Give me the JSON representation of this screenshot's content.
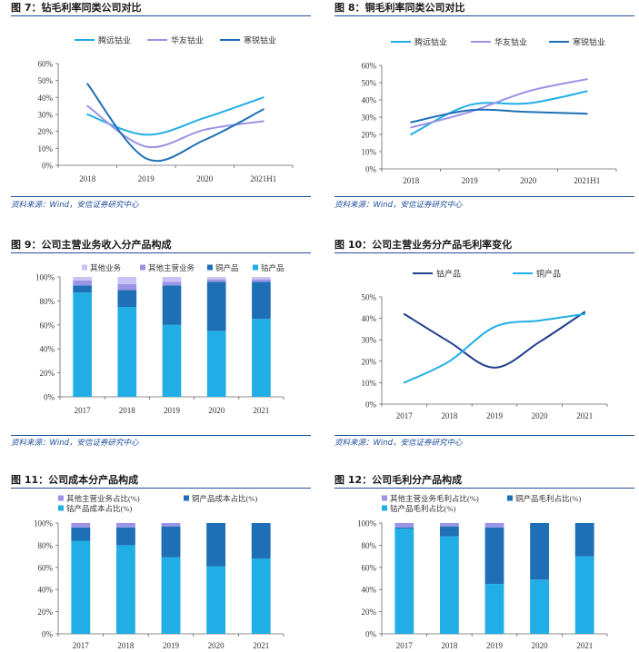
{
  "colors": {
    "navy": "#1F3F8C",
    "blue": "#1E6FB6",
    "cyan": "#21AEE6",
    "lavender": "#9B93E6",
    "lightlav": "#C8C3F2",
    "rule": "#1F4E9A"
  },
  "panels": [
    {
      "id": "fig7",
      "title": "图 7：钻毛利率同类公司对比",
      "source": "资料来源：Wind，安信证券研究中心",
      "chart_data": {
        "type": "line",
        "categories": [
          "2018",
          "2019",
          "2020",
          "2021H1"
        ],
        "ylim": [
          0,
          0.6
        ],
        "yticks": [
          "0%",
          "10%",
          "20%",
          "30%",
          "40%",
          "50%",
          "60%"
        ],
        "legend_position": "top",
        "series": [
          {
            "name": "腾远钴业",
            "color": "#21AEE6",
            "values": [
              0.3,
              0.18,
              0.28,
              0.4
            ]
          },
          {
            "name": "华友钴业",
            "color": "#9B93E6",
            "values": [
              0.35,
              0.11,
              0.21,
              0.26
            ]
          },
          {
            "name": "寒锐钴业",
            "color": "#1E6FB6",
            "values": [
              0.48,
              0.04,
              0.15,
              0.33
            ]
          }
        ]
      }
    },
    {
      "id": "fig8",
      "title": "图 8：铜毛利率同类公司对比",
      "source": "资料来源：Wind，安信证券研究中心",
      "chart_data": {
        "type": "line",
        "categories": [
          "2018",
          "2019",
          "2020",
          "2021H1"
        ],
        "ylim": [
          0,
          0.6
        ],
        "yticks": [
          "0%",
          "10%",
          "20%",
          "30%",
          "40%",
          "50%",
          "60%"
        ],
        "legend_position": "top",
        "series": [
          {
            "name": "腾远钴业",
            "color": "#21AEE6",
            "values": [
              0.2,
              0.37,
              0.38,
              0.45
            ]
          },
          {
            "name": "华友钴业",
            "color": "#9B93E6",
            "values": [
              0.24,
              0.33,
              0.45,
              0.52
            ]
          },
          {
            "name": "寒锐钴业",
            "color": "#1E6FB6",
            "values": [
              0.27,
              0.34,
              0.33,
              0.32
            ]
          }
        ]
      }
    },
    {
      "id": "fig9",
      "title": "图 9：公司主营业务收入分产品构成",
      "source": "资料来源：Wind，安信证券研究中心",
      "chart_data": {
        "type": "bar",
        "stacked": true,
        "categories": [
          "2017",
          "2018",
          "2019",
          "2020",
          "2021"
        ],
        "ylim": [
          0,
          1
        ],
        "yticks": [
          "0%",
          "20%",
          "40%",
          "60%",
          "80%",
          "100%"
        ],
        "legend_position": "top",
        "legend_order": [
          3,
          2,
          1,
          0
        ],
        "series": [
          {
            "name": "钴产品",
            "color": "#21AEE6",
            "values": [
              0.87,
              0.75,
              0.6,
              0.55,
              0.65
            ]
          },
          {
            "name": "铜产品",
            "color": "#1E6FB6",
            "values": [
              0.06,
              0.14,
              0.33,
              0.41,
              0.31
            ]
          },
          {
            "name": "其他主营业务",
            "color": "#9B93E6",
            "values": [
              0.04,
              0.05,
              0.03,
              0.02,
              0.02
            ]
          },
          {
            "name": "其他业务",
            "color": "#C8C3F2",
            "values": [
              0.03,
              0.06,
              0.04,
              0.02,
              0.02
            ]
          }
        ]
      }
    },
    {
      "id": "fig10",
      "title": "图 10：公司主营业务分产品毛利率变化",
      "source": "资料来源：Wind，安信证券研究中心",
      "chart_data": {
        "type": "line",
        "categories": [
          "2017",
          "2018",
          "2019",
          "2020",
          "2021"
        ],
        "ylim": [
          0,
          0.5
        ],
        "yticks": [
          "0%",
          "10%",
          "20%",
          "30%",
          "40%",
          "50%"
        ],
        "legend_position": "top",
        "series": [
          {
            "name": "钴产品",
            "color": "#1F3F8C",
            "values": [
              0.42,
              0.29,
              0.17,
              0.29,
              0.43
            ]
          },
          {
            "name": "铜产品",
            "color": "#21AEE6",
            "values": [
              0.1,
              0.2,
              0.36,
              0.39,
              0.42
            ]
          }
        ]
      }
    },
    {
      "id": "fig11",
      "title": "图 11：公司成本分产品构成",
      "source": "",
      "chart_data": {
        "type": "bar",
        "stacked": true,
        "categories": [
          "2017",
          "2018",
          "2019",
          "2020",
          "2021"
        ],
        "ylim": [
          0,
          1
        ],
        "yticks": [
          "0%",
          "20%",
          "40%",
          "60%",
          "80%",
          "100%"
        ],
        "legend_position": "top",
        "legend_order": [
          2,
          1,
          0
        ],
        "series": [
          {
            "name": "钴产品成本占比(%)",
            "color": "#21AEE6",
            "values": [
              0.84,
              0.8,
              0.69,
              0.61,
              0.68
            ]
          },
          {
            "name": "铜产品成本占比(%)",
            "color": "#1E6FB6",
            "values": [
              0.12,
              0.16,
              0.28,
              0.39,
              0.32
            ]
          },
          {
            "name": "其他主营业务占比(%)",
            "color": "#9B93E6",
            "values": [
              0.04,
              0.04,
              0.03,
              0.0,
              0.0
            ]
          }
        ]
      }
    },
    {
      "id": "fig12",
      "title": "图 12：公司毛利分产品构成",
      "source": "",
      "chart_data": {
        "type": "bar",
        "stacked": true,
        "categories": [
          "2017",
          "2018",
          "2019",
          "2020",
          "2021"
        ],
        "ylim": [
          0,
          1
        ],
        "yticks": [
          "0%",
          "20%",
          "40%",
          "60%",
          "80%",
          "100%"
        ],
        "legend_position": "top",
        "legend_order": [
          2,
          1,
          0
        ],
        "series": [
          {
            "name": "钴产品毛利占比(%)",
            "color": "#21AEE6",
            "values": [
              0.95,
              0.88,
              0.45,
              0.49,
              0.7
            ]
          },
          {
            "name": "铜产品毛利占比(%)",
            "color": "#1E6FB6",
            "values": [
              0.01,
              0.09,
              0.51,
              0.51,
              0.3
            ]
          },
          {
            "name": "其他主营业务毛利占比(%)",
            "color": "#9B93E6",
            "values": [
              0.04,
              0.03,
              0.04,
              0.0,
              0.0
            ]
          }
        ]
      }
    }
  ]
}
